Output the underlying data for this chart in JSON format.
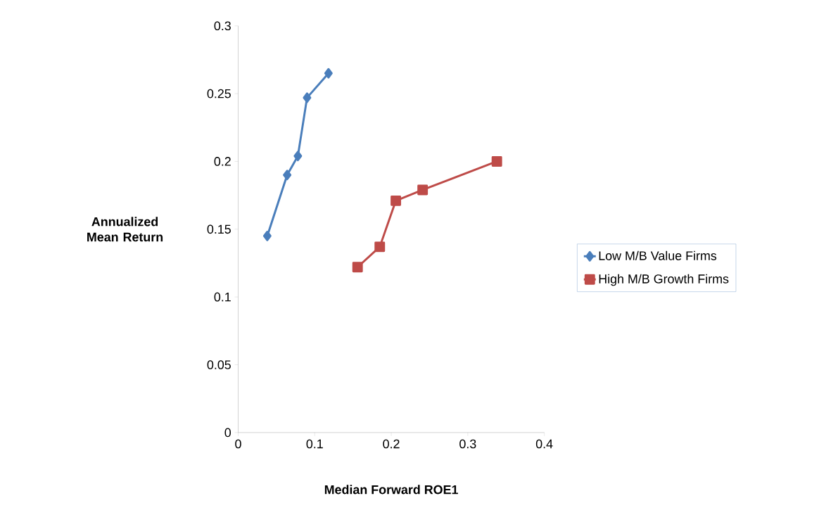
{
  "chart_data": {
    "type": "line",
    "xlabel": "Median Forward ROE1",
    "ylabel": "Annualized Mean Return",
    "xlim": [
      0,
      0.4
    ],
    "ylim": [
      0,
      0.3
    ],
    "xticks": [
      0,
      0.1,
      0.2,
      0.3,
      0.4
    ],
    "yticks": [
      0,
      0.05,
      0.1,
      0.15,
      0.2,
      0.25,
      0.3
    ],
    "legend": "right",
    "grid": false,
    "series": [
      {
        "name": "Low M/B Value Firms",
        "color": "#4a7ebb",
        "marker": "diamond",
        "x": [
          0.038,
          0.064,
          0.078,
          0.09,
          0.118
        ],
        "values": [
          0.145,
          0.19,
          0.204,
          0.247,
          0.265
        ]
      },
      {
        "name": "High M/B Growth Firms",
        "color": "#be4b48",
        "marker": "square",
        "x": [
          0.156,
          0.185,
          0.206,
          0.241,
          0.338
        ],
        "values": [
          0.122,
          0.137,
          0.171,
          0.179,
          0.2
        ]
      }
    ]
  }
}
